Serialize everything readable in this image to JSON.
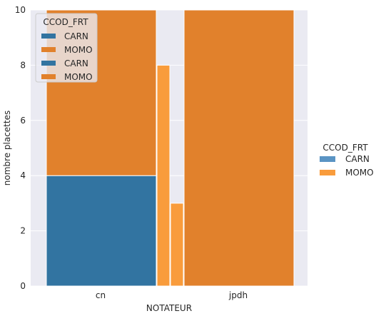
{
  "chart_data": {
    "type": "bar",
    "xlabel": "NOTATEUR",
    "ylabel": "nombre placettes",
    "categories": [
      "cn",
      "jpdh"
    ],
    "ylim": [
      0,
      10
    ],
    "yticks": [
      0,
      2,
      4,
      6,
      8,
      10
    ],
    "series_colors": {
      "CARN": "#3274a1",
      "MOMO": "#e1812c",
      "CARN_light": "#5a94c4",
      "MOMO_light": "#f99c3c"
    },
    "stacked_layer": {
      "name": "stacked",
      "series": [
        {
          "name": "CARN",
          "values": [
            4,
            0
          ]
        },
        {
          "name": "MOMO",
          "values": [
            6,
            10
          ]
        }
      ]
    },
    "dodged_layer": {
      "name": "dodged",
      "bars": [
        {
          "category": "cn",
          "series": "MOMO",
          "value": 8
        },
        {
          "category": "cn",
          "series": "MOMO",
          "value": 3
        }
      ]
    },
    "inner_legend": {
      "title": "CCOD_FRT",
      "entries": [
        {
          "label": "CARN",
          "color": "#3274a1"
        },
        {
          "label": "MOMO",
          "color": "#e1812c"
        },
        {
          "label": "CARN",
          "color": "#3274a1"
        },
        {
          "label": "MOMO",
          "color": "#e1812c"
        }
      ]
    },
    "outer_legend": {
      "title": "CCOD_FRT",
      "entries": [
        {
          "label": "CARN",
          "color": "#5a94c4"
        },
        {
          "label": "MOMO",
          "color": "#f99c3c"
        }
      ]
    }
  }
}
